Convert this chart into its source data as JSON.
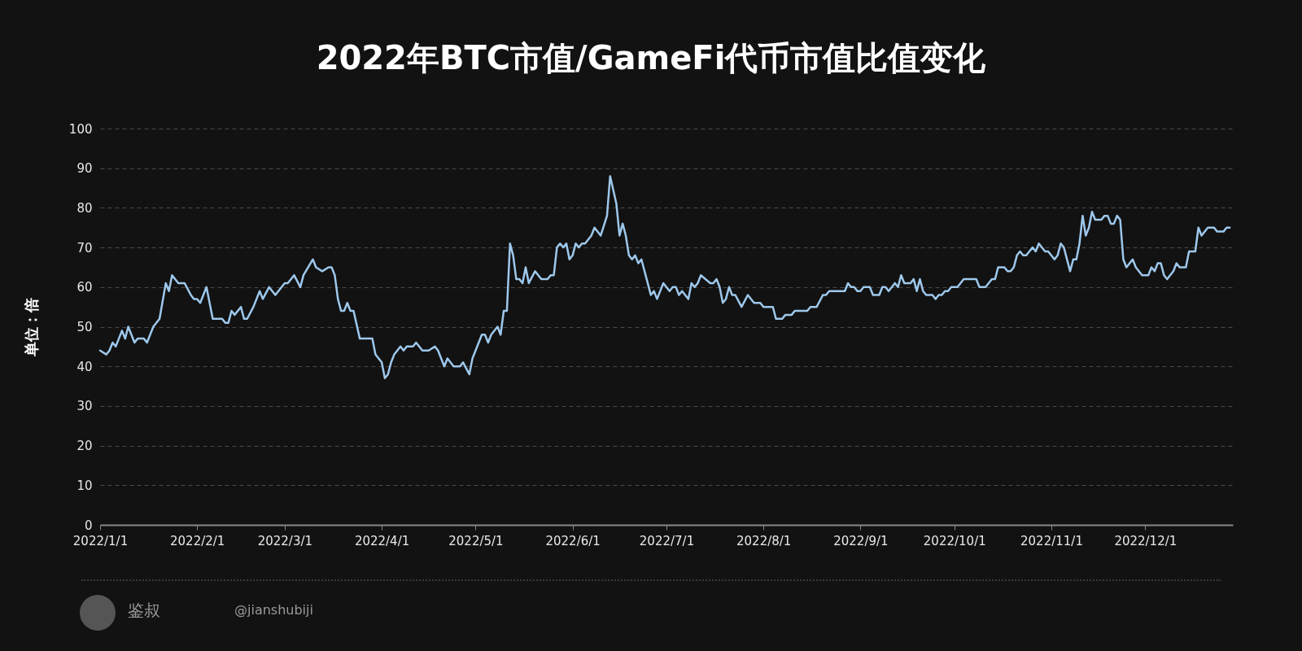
{
  "chart_data": {
    "type": "line",
    "title": "2022年BTC市值/GameFi代币市值比值变化",
    "ylabel": "单位：倍",
    "x": [
      "2022-01-01",
      "2022-01-03",
      "2022-01-04",
      "2022-01-05",
      "2022-01-06",
      "2022-01-08",
      "2022-01-09",
      "2022-01-10",
      "2022-01-12",
      "2022-01-13",
      "2022-01-15",
      "2022-01-16",
      "2022-01-18",
      "2022-01-20",
      "2022-01-22",
      "2022-01-23",
      "2022-01-24",
      "2022-01-26",
      "2022-01-28",
      "2022-01-30",
      "2022-01-31",
      "2022-02-01",
      "2022-02-02",
      "2022-02-03",
      "2022-02-04",
      "2022-02-06",
      "2022-02-09",
      "2022-02-10",
      "2022-02-11",
      "2022-02-12",
      "2022-02-13",
      "2022-02-15",
      "2022-02-16",
      "2022-02-17",
      "2022-02-19",
      "2022-02-21",
      "2022-02-22",
      "2022-02-24",
      "2022-02-26",
      "2022-03-01",
      "2022-03-02",
      "2022-03-04",
      "2022-03-06",
      "2022-03-07",
      "2022-03-10",
      "2022-03-11",
      "2022-03-13",
      "2022-03-15",
      "2022-03-16",
      "2022-03-17",
      "2022-03-18",
      "2022-03-19",
      "2022-03-20",
      "2022-03-21",
      "2022-03-22",
      "2022-03-23",
      "2022-03-25",
      "2022-03-29",
      "2022-03-30",
      "2022-04-01",
      "2022-04-02",
      "2022-04-03",
      "2022-04-04",
      "2022-04-05",
      "2022-04-07",
      "2022-04-08",
      "2022-04-09",
      "2022-04-11",
      "2022-04-12",
      "2022-04-14",
      "2022-04-16",
      "2022-04-18",
      "2022-04-19",
      "2022-04-21",
      "2022-04-22",
      "2022-04-24",
      "2022-04-26",
      "2022-04-27",
      "2022-04-29",
      "2022-04-30",
      "2022-05-01",
      "2022-05-03",
      "2022-05-04",
      "2022-05-05",
      "2022-05-06",
      "2022-05-08",
      "2022-05-09",
      "2022-05-10",
      "2022-05-11",
      "2022-05-12",
      "2022-05-13",
      "2022-05-14",
      "2022-05-15",
      "2022-05-16",
      "2022-05-17",
      "2022-05-18",
      "2022-05-20",
      "2022-05-22",
      "2022-05-24",
      "2022-05-25",
      "2022-05-26",
      "2022-05-27",
      "2022-05-28",
      "2022-05-29",
      "2022-05-30",
      "2022-05-31",
      "2022-06-01",
      "2022-06-02",
      "2022-06-03",
      "2022-06-04",
      "2022-06-05",
      "2022-06-07",
      "2022-06-08",
      "2022-06-10",
      "2022-06-12",
      "2022-06-13",
      "2022-06-15",
      "2022-06-16",
      "2022-06-17",
      "2022-06-18",
      "2022-06-19",
      "2022-06-20",
      "2022-06-21",
      "2022-06-22",
      "2022-06-23",
      "2022-06-25",
      "2022-06-26",
      "2022-06-27",
      "2022-06-28",
      "2022-06-30",
      "2022-07-02",
      "2022-07-03",
      "2022-07-04",
      "2022-07-05",
      "2022-07-06",
      "2022-07-08",
      "2022-07-09",
      "2022-07-10",
      "2022-07-11",
      "2022-07-12",
      "2022-07-15",
      "2022-07-16",
      "2022-07-17",
      "2022-07-18",
      "2022-07-19",
      "2022-07-20",
      "2022-07-21",
      "2022-07-22",
      "2022-07-23",
      "2022-07-25",
      "2022-07-27",
      "2022-07-29",
      "2022-07-31",
      "2022-08-01",
      "2022-08-04",
      "2022-08-05",
      "2022-08-07",
      "2022-08-08",
      "2022-08-10",
      "2022-08-11",
      "2022-08-15",
      "2022-08-16",
      "2022-08-18",
      "2022-08-20",
      "2022-08-21",
      "2022-08-22",
      "2022-08-27",
      "2022-08-28",
      "2022-08-29",
      "2022-08-30",
      "2022-08-31",
      "2022-09-01",
      "2022-09-02",
      "2022-09-04",
      "2022-09-05",
      "2022-09-07",
      "2022-09-08",
      "2022-09-09",
      "2022-09-10",
      "2022-09-12",
      "2022-09-13",
      "2022-09-14",
      "2022-09-15",
      "2022-09-17",
      "2022-09-18",
      "2022-09-19",
      "2022-09-20",
      "2022-09-21",
      "2022-09-22",
      "2022-09-24",
      "2022-09-25",
      "2022-09-26",
      "2022-09-27",
      "2022-09-28",
      "2022-09-29",
      "2022-09-30",
      "2022-10-02",
      "2022-10-04",
      "2022-10-08",
      "2022-10-09",
      "2022-10-11",
      "2022-10-13",
      "2022-10-14",
      "2022-10-15",
      "2022-10-17",
      "2022-10-18",
      "2022-10-19",
      "2022-10-20",
      "2022-10-21",
      "2022-10-22",
      "2022-10-23",
      "2022-10-24",
      "2022-10-26",
      "2022-10-27",
      "2022-10-28",
      "2022-10-30",
      "2022-10-31",
      "2022-11-02",
      "2022-11-03",
      "2022-11-04",
      "2022-11-05",
      "2022-11-07",
      "2022-11-08",
      "2022-11-09",
      "2022-11-10",
      "2022-11-11",
      "2022-11-12",
      "2022-11-13",
      "2022-11-14",
      "2022-11-15",
      "2022-11-17",
      "2022-11-18",
      "2022-11-19",
      "2022-11-20",
      "2022-11-21",
      "2022-11-22",
      "2022-11-23",
      "2022-11-24",
      "2022-11-25",
      "2022-11-27",
      "2022-11-28",
      "2022-11-30",
      "2022-12-02",
      "2022-12-03",
      "2022-12-04",
      "2022-12-05",
      "2022-12-06",
      "2022-12-07",
      "2022-12-08",
      "2022-12-10",
      "2022-12-11",
      "2022-12-12",
      "2022-12-14",
      "2022-12-15",
      "2022-12-17",
      "2022-12-18",
      "2022-12-19",
      "2022-12-21",
      "2022-12-23",
      "2022-12-24",
      "2022-12-26",
      "2022-12-27",
      "2022-12-28"
    ],
    "series": [
      {
        "color": "#9ec8ec",
        "values": [
          44,
          43,
          44,
          46,
          45,
          49,
          47,
          50,
          46,
          47,
          47,
          46,
          50,
          52,
          61,
          59,
          63,
          61,
          61,
          58,
          57,
          57,
          56,
          58,
          60,
          52,
          52,
          51,
          51,
          54,
          53,
          55,
          52,
          52,
          55,
          59,
          57,
          60,
          58,
          61,
          61,
          63,
          60,
          63,
          67,
          65,
          64,
          65,
          65,
          63,
          57,
          54,
          54,
          56,
          54,
          54,
          47,
          47,
          43,
          41,
          37,
          38,
          41,
          43,
          45,
          44,
          45,
          45,
          46,
          44,
          44,
          45,
          44,
          40,
          42,
          40,
          40,
          41,
          38,
          42,
          44,
          48,
          48,
          46,
          48,
          50,
          48,
          54,
          54,
          71,
          68,
          62,
          62,
          61,
          65,
          61,
          64,
          62,
          62,
          63,
          63,
          70,
          71,
          70,
          71,
          67,
          68,
          71,
          70,
          71,
          71,
          73,
          75,
          73,
          78,
          88,
          81,
          73,
          76,
          73,
          68,
          67,
          68,
          66,
          67,
          61,
          58,
          59,
          57,
          61,
          59,
          60,
          60,
          58,
          59,
          57,
          61,
          60,
          61,
          63,
          61,
          61,
          62,
          60,
          56,
          57,
          60,
          58,
          58,
          55,
          58,
          56,
          56,
          55,
          55,
          52,
          52,
          53,
          53,
          54,
          54,
          55,
          55,
          58,
          58,
          59,
          59,
          61,
          60,
          60,
          59,
          59,
          60,
          60,
          58,
          58,
          60,
          60,
          59,
          61,
          60,
          63,
          61,
          61,
          62,
          59,
          62,
          59,
          58,
          58,
          57,
          58,
          58,
          59,
          59,
          60,
          60,
          62,
          62,
          60,
          60,
          62,
          62,
          65,
          65,
          64,
          64,
          65,
          68,
          69,
          68,
          68,
          70,
          69,
          71,
          69,
          69,
          67,
          68,
          71,
          70,
          64,
          67,
          67,
          71,
          78,
          73,
          75,
          79,
          77,
          77,
          78,
          78,
          76,
          76,
          78,
          77,
          67,
          65,
          67,
          65,
          63,
          63,
          65,
          64,
          66,
          66,
          63,
          62,
          64,
          66,
          65,
          65,
          69,
          69,
          75,
          73,
          75,
          75,
          74,
          74,
          75,
          75
        ]
      }
    ],
    "xlim": [
      "2022-01-01",
      "2022-12-29"
    ],
    "xticks": [
      {
        "value": "2022-01-01",
        "label": "2022/1/1"
      },
      {
        "value": "2022-02-01",
        "label": "2022/2/1"
      },
      {
        "value": "2022-03-01",
        "label": "2022/3/1"
      },
      {
        "value": "2022-04-01",
        "label": "2022/4/1"
      },
      {
        "value": "2022-05-01",
        "label": "2022/5/1"
      },
      {
        "value": "2022-06-01",
        "label": "2022/6/1"
      },
      {
        "value": "2022-07-01",
        "label": "2022/7/1"
      },
      {
        "value": "2022-08-01",
        "label": "2022/8/1"
      },
      {
        "value": "2022-09-01",
        "label": "2022/9/1"
      },
      {
        "value": "2022-10-01",
        "label": "2022/10/1"
      },
      {
        "value": "2022-11-01",
        "label": "2022/11/1"
      },
      {
        "value": "2022-12-01",
        "label": "2022/12/1"
      }
    ],
    "ylim": [
      0,
      100
    ],
    "yticks": [
      0,
      10,
      20,
      30,
      40,
      50,
      60,
      70,
      80,
      90,
      100
    ],
    "grid": "y",
    "annotations": [
      "鉴叔",
      "@jianshubiji"
    ]
  }
}
